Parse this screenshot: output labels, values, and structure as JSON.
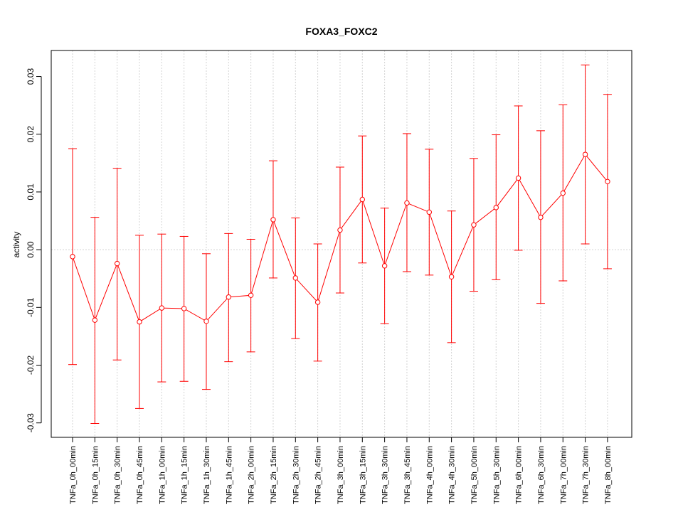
{
  "chart_data": {
    "type": "line",
    "title": "FOXA3_FOXC2",
    "xlabel": "",
    "ylabel": "activity",
    "ylim": [
      -0.0325,
      0.0345
    ],
    "yticks": [
      -0.03,
      -0.02,
      -0.01,
      0.0,
      0.01,
      0.02,
      0.03
    ],
    "ytick_labels": [
      "-0.03",
      "-0.02",
      "-0.01",
      "0.00",
      "0.01",
      "0.02",
      "0.03"
    ],
    "grid": true,
    "line_color": "#ff0000",
    "grid_color": "#d3d3d3",
    "categories": [
      "TNFa_0h_00min",
      "TNFa_0h_15min",
      "TNFa_0h_30min",
      "TNFa_0h_45min",
      "TNFa_1h_00min",
      "TNFa_1h_15min",
      "TNFa_1h_30min",
      "TNFa_1h_45min",
      "TNFa_2h_00min",
      "TNFa_2h_15min",
      "TNFa_2h_30min",
      "TNFa_2h_45min",
      "TNFa_3h_00min",
      "TNFa_3h_15min",
      "TNFa_3h_30min",
      "TNFa_3h_45min",
      "TNFa_4h_00min",
      "TNFa_4h_30min",
      "TNFa_5h_00min",
      "TNFa_5h_30min",
      "TNFa_6h_00min",
      "TNFa_6h_30min",
      "TNFa_7h_00min",
      "TNFa_7h_30min",
      "TNFa_8h_00min"
    ],
    "series": [
      {
        "values": [
          -0.0012,
          -0.0122,
          -0.0024,
          -0.0125,
          -0.0101,
          -0.0102,
          -0.0124,
          -0.0082,
          -0.0079,
          0.0052,
          -0.0049,
          -0.0091,
          0.0034,
          0.0087,
          -0.0028,
          0.0081,
          0.0065,
          -0.0047,
          0.0043,
          0.0073,
          0.0124,
          0.0056,
          0.0098,
          0.0165,
          0.0118
        ],
        "upper": [
          0.0175,
          0.0056,
          0.0141,
          0.0025,
          0.0027,
          0.0023,
          -0.0007,
          0.0028,
          0.0018,
          0.0154,
          0.0055,
          0.001,
          0.0143,
          0.0197,
          0.0072,
          0.0201,
          0.0174,
          0.0067,
          0.0158,
          0.0199,
          0.0249,
          0.0206,
          0.0251,
          0.032,
          0.0269
        ],
        "lower": [
          -0.0199,
          -0.0301,
          -0.0191,
          -0.0275,
          -0.0229,
          -0.0228,
          -0.0242,
          -0.0194,
          -0.0177,
          -0.0049,
          -0.0154,
          -0.0193,
          -0.0075,
          -0.0023,
          -0.0128,
          -0.0038,
          -0.0044,
          -0.0161,
          -0.0072,
          -0.0052,
          -0.0001,
          -0.0093,
          -0.0054,
          0.001,
          -0.0033
        ]
      }
    ]
  }
}
